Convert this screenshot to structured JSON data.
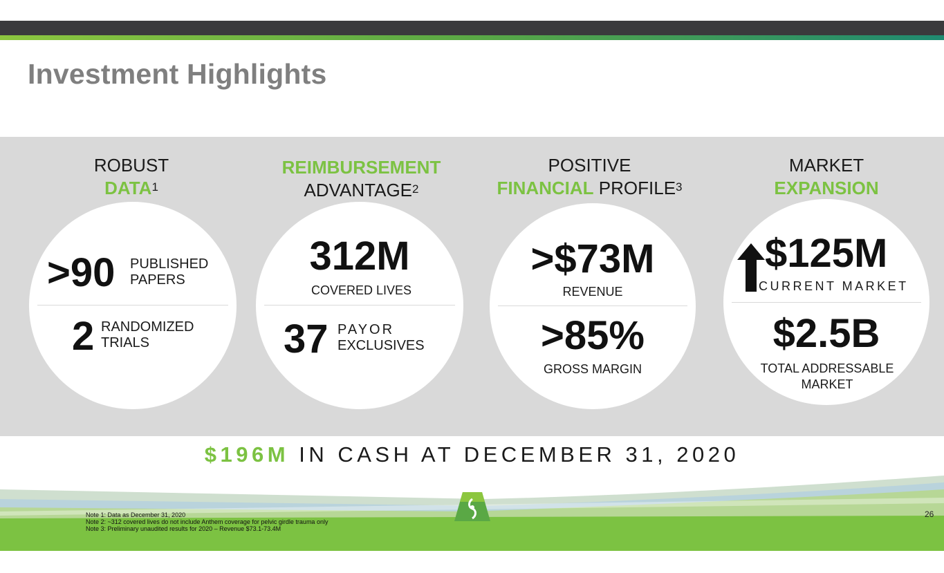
{
  "title": "Investment Highlights",
  "columns": [
    {
      "head_line1": "ROBUST",
      "head_green": "DATA",
      "head_sup": "1",
      "stat1_value": ">90",
      "stat1_label_line1": "PUBLISHED",
      "stat1_label_line2": "PAPERS",
      "stat2_value": "2",
      "stat2_label_line1": "RANDOMIZED",
      "stat2_label_line2": "TRIALS"
    },
    {
      "head_green": "REIMBURSEMENT",
      "head_line2": "ADVANTAGE",
      "head_sup": "2",
      "stat1_value": "312M",
      "stat1_label": "COVERED LIVES",
      "stat2_value": "37",
      "stat2_label_line1": "PAYOR",
      "stat2_label_line2": "EXCLUSIVES"
    },
    {
      "head_line1": "POSITIVE",
      "head_green": "FINANCIAL",
      "head_line2": "PROFILE",
      "head_sup": "3",
      "stat1_value": ">$73M",
      "stat1_label": "REVENUE",
      "stat2_value": ">85%",
      "stat2_label": "GROSS MARGIN"
    },
    {
      "head_line1": "MARKET",
      "head_green": "EXPANSION",
      "stat1_value": "$125M",
      "stat1_label": "CURRENT MARKET",
      "stat2_value": "$2.5B",
      "stat2_label_line1": "TOTAL ADDRESSABLE",
      "stat2_label_line2": "MARKET",
      "arrow_icon": "up-arrow-icon"
    }
  ],
  "cash": {
    "amount": "$196M",
    "text": "IN CASH AT DECEMBER 31, 2020"
  },
  "notes": [
    "Note 1: Data as December 31, 2020",
    "Note 2: ~312 covered lives do not include Anthem coverage for pelvic girdle trauma only",
    "Note 3: Preliminary unaudited results for 2020 – Revenue $73.1-73.4M"
  ],
  "page_number": "26",
  "colors": {
    "accent_green": "#7cc242",
    "title_gray": "#7f7f7f",
    "panel_gray": "#d9d9d9",
    "top_bar": "#3a3a3c"
  }
}
